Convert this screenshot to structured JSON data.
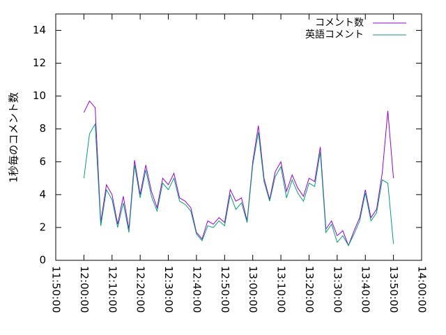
{
  "chart_data": {
    "type": "line",
    "ylabel": "1秒毎のコメント数",
    "x": [
      "12:00:00",
      "12:02:00",
      "12:04:00",
      "12:06:00",
      "12:08:00",
      "12:10:00",
      "12:12:00",
      "12:14:00",
      "12:16:00",
      "12:18:00",
      "12:20:00",
      "12:22:00",
      "12:24:00",
      "12:26:00",
      "12:28:00",
      "12:30:00",
      "12:32:00",
      "12:34:00",
      "12:36:00",
      "12:38:00",
      "12:40:00",
      "12:42:00",
      "12:44:00",
      "12:46:00",
      "12:48:00",
      "12:50:00",
      "12:52:00",
      "12:54:00",
      "12:56:00",
      "12:58:00",
      "13:00:00",
      "13:02:00",
      "13:04:00",
      "13:06:00",
      "13:08:00",
      "13:10:00",
      "13:12:00",
      "13:14:00",
      "13:16:00",
      "13:18:00",
      "13:20:00",
      "13:22:00",
      "13:24:00",
      "13:26:00",
      "13:28:00",
      "13:30:00",
      "13:32:00",
      "13:34:00",
      "13:36:00",
      "13:38:00",
      "13:40:00",
      "13:42:00",
      "13:44:00",
      "13:46:00",
      "13:48:00",
      "13:50:00"
    ],
    "series": [
      {
        "name": "コメント数",
        "color": "#9400d3",
        "values": [
          9.0,
          9.7,
          9.3,
          2.3,
          4.6,
          4.0,
          2.2,
          3.9,
          1.9,
          6.1,
          4.0,
          5.8,
          4.2,
          3.2,
          5.0,
          4.6,
          5.3,
          3.8,
          3.6,
          3.2,
          1.7,
          1.3,
          2.4,
          2.2,
          2.6,
          2.3,
          4.3,
          3.6,
          3.8,
          2.4,
          6.0,
          8.2,
          5.0,
          3.7,
          5.4,
          6.0,
          4.2,
          5.2,
          4.4,
          3.9,
          5.0,
          4.8,
          6.9,
          1.9,
          2.4,
          1.5,
          1.8,
          0.9,
          1.8,
          2.6,
          4.3,
          2.6,
          3.1,
          5.3,
          9.1,
          5.0
        ]
      },
      {
        "name": "英語コメント",
        "color": "#009e73",
        "values": [
          5.0,
          7.7,
          8.3,
          2.1,
          4.3,
          3.7,
          2.0,
          3.5,
          1.7,
          5.8,
          3.8,
          5.5,
          3.9,
          3.0,
          4.7,
          4.3,
          5.0,
          3.6,
          3.4,
          3.0,
          1.6,
          1.2,
          2.1,
          2.0,
          2.4,
          2.1,
          4.0,
          3.1,
          3.5,
          2.3,
          5.8,
          7.8,
          4.8,
          3.6,
          5.1,
          5.7,
          3.8,
          4.9,
          4.1,
          3.6,
          4.7,
          4.5,
          6.6,
          1.7,
          2.2,
          1.1,
          1.5,
          0.9,
          1.6,
          2.4,
          4.1,
          2.4,
          2.9,
          4.9,
          4.7,
          1.0
        ]
      }
    ],
    "xlim": [
      "11:50:00",
      "14:00:00"
    ],
    "xticks": [
      "11:50:00",
      "12:00:00",
      "12:10:00",
      "12:20:00",
      "12:30:00",
      "12:40:00",
      "12:50:00",
      "13:00:00",
      "13:10:00",
      "13:20:00",
      "13:30:00",
      "13:40:00",
      "13:50:00",
      "14:00:00"
    ],
    "ylim": [
      0,
      15
    ],
    "yticks": [
      0,
      2,
      4,
      6,
      8,
      10,
      12,
      14
    ],
    "legend": "top-right"
  }
}
